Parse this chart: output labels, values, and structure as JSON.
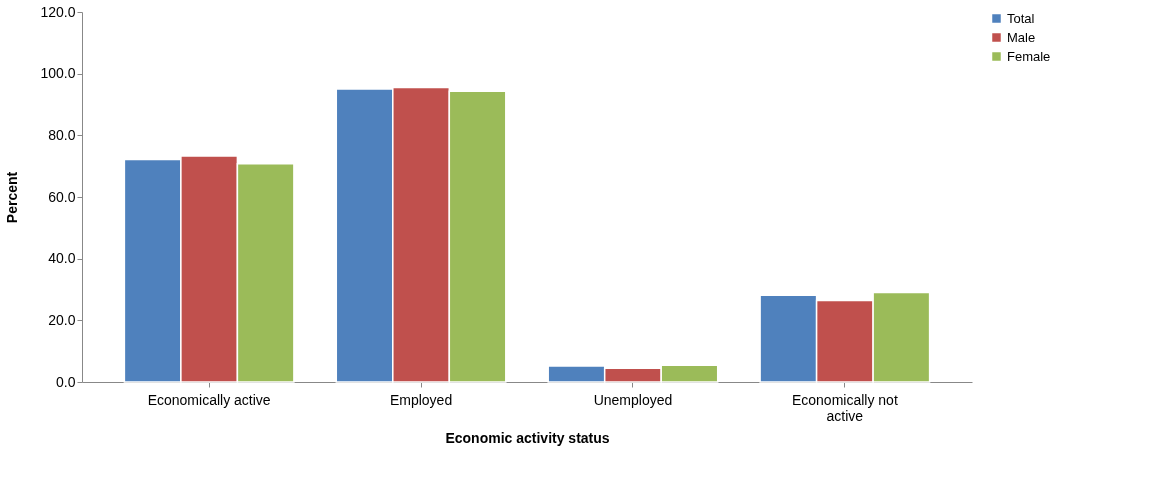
{
  "chart_data": {
    "type": "bar",
    "xlabel": "Economic activity status",
    "ylabel": "Percent",
    "categories": [
      "Economically active",
      "Employed",
      "Unemployed",
      "Economically not active"
    ],
    "series": [
      {
        "name": "Total",
        "color": "#4f81bd",
        "values": [
          72.2,
          95.0,
          5.2,
          28.1
        ]
      },
      {
        "name": "Male",
        "color": "#c0504d",
        "values": [
          73.3,
          95.5,
          4.5,
          26.4
        ]
      },
      {
        "name": "Female",
        "color": "#9bbb59",
        "values": [
          70.8,
          94.3,
          5.4,
          29.0
        ]
      }
    ],
    "ylim": [
      0,
      120
    ],
    "yticks": [
      {
        "value": 0,
        "label": "0.0"
      },
      {
        "value": 20,
        "label": "20.0"
      },
      {
        "value": 40,
        "label": "40.0"
      },
      {
        "value": 60,
        "label": "60.0"
      },
      {
        "value": 80,
        "label": "80.0"
      },
      {
        "value": 100,
        "label": "100.0"
      },
      {
        "value": 120,
        "label": "120.0"
      }
    ],
    "grid": false,
    "legend": "right"
  }
}
